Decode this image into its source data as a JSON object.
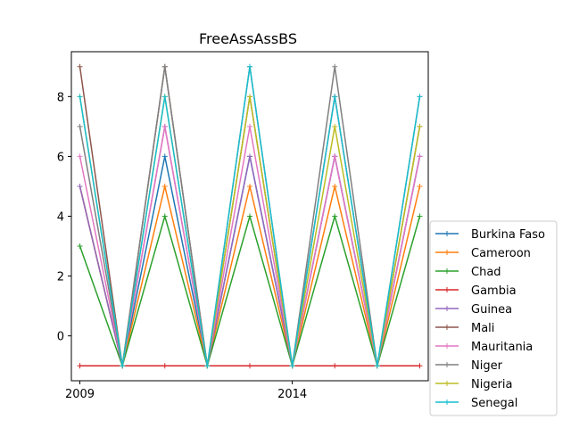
{
  "chart_data": {
    "type": "line",
    "title": "FreeAssAssBS",
    "xlabel": "",
    "ylabel": "",
    "x": [
      2009,
      2010,
      2011,
      2012,
      2013,
      2014,
      2015,
      2016,
      2017
    ],
    "xticks": [
      2009,
      2014
    ],
    "xtick_labels": [
      "2009",
      "2014"
    ],
    "yticks": [
      0,
      2,
      4,
      6,
      8
    ],
    "ylim": [
      -1.5,
      9.5
    ],
    "xlim": [
      2008.8,
      2017.2
    ],
    "grid": false,
    "legend_position": "right",
    "series": [
      {
        "name": "Burkina Faso",
        "color": "#1f77b4",
        "values": [
          5,
          -1,
          6,
          -1,
          6,
          -1,
          6,
          -1,
          6
        ]
      },
      {
        "name": "Cameroon",
        "color": "#ff7f0e",
        "values": [
          5,
          -1,
          5,
          -1,
          5,
          -1,
          5,
          -1,
          5
        ]
      },
      {
        "name": "Chad",
        "color": "#2ca02c",
        "values": [
          3,
          -1,
          4,
          -1,
          4,
          -1,
          4,
          -1,
          4
        ]
      },
      {
        "name": "Gambia",
        "color": "#d62728",
        "values": [
          -1,
          -1,
          -1,
          -1,
          -1,
          -1,
          -1,
          -1,
          -1
        ]
      },
      {
        "name": "Guinea",
        "color": "#9467bd",
        "values": [
          5,
          -1,
          7,
          -1,
          6,
          -1,
          6,
          -1,
          6
        ]
      },
      {
        "name": "Mali",
        "color": "#8c564b",
        "values": [
          9,
          -1,
          9,
          -1,
          8,
          -1,
          8,
          -1,
          7
        ]
      },
      {
        "name": "Mauritania",
        "color": "#e377c2",
        "values": [
          6,
          -1,
          7,
          -1,
          7,
          -1,
          6,
          -1,
          6
        ]
      },
      {
        "name": "Niger",
        "color": "#7f7f7f",
        "values": [
          7,
          -1,
          9,
          -1,
          9,
          -1,
          9,
          -1,
          8
        ]
      },
      {
        "name": "Nigeria",
        "color": "#bcbd22",
        "values": [
          8,
          -1,
          8,
          -1,
          8,
          -1,
          7,
          -1,
          7
        ]
      },
      {
        "name": "Senegal",
        "color": "#17becf",
        "values": [
          8,
          -1,
          8,
          -1,
          9,
          -1,
          8,
          -1,
          8
        ]
      }
    ]
  }
}
